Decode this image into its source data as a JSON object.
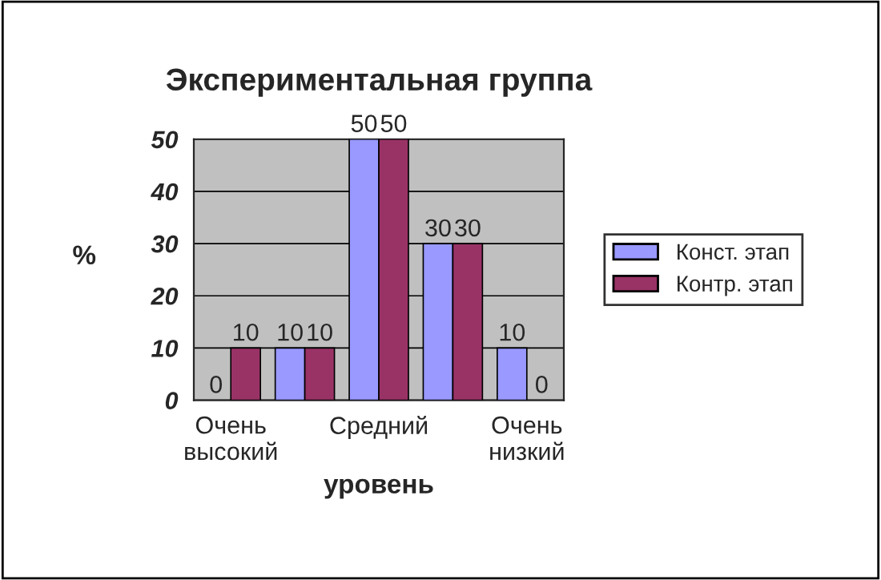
{
  "chart_data": {
    "type": "bar",
    "title": "Экспериментальная группа",
    "xlabel": "уровень",
    "ylabel": "%",
    "categories": [
      "Очень высокий",
      null,
      "Средний",
      null,
      "Очень низкий"
    ],
    "series": [
      {
        "name": "Конст. этап",
        "color": "#9999ff",
        "values": [
          0,
          10,
          50,
          30,
          10
        ]
      },
      {
        "name": "Контр. этап",
        "color": "#993366",
        "values": [
          10,
          10,
          50,
          30,
          0
        ]
      }
    ],
    "ylim": [
      0,
      50
    ],
    "yticks": [
      0,
      10,
      20,
      30,
      40,
      50
    ],
    "grid": "y",
    "legend": "right",
    "data_labels": true
  }
}
